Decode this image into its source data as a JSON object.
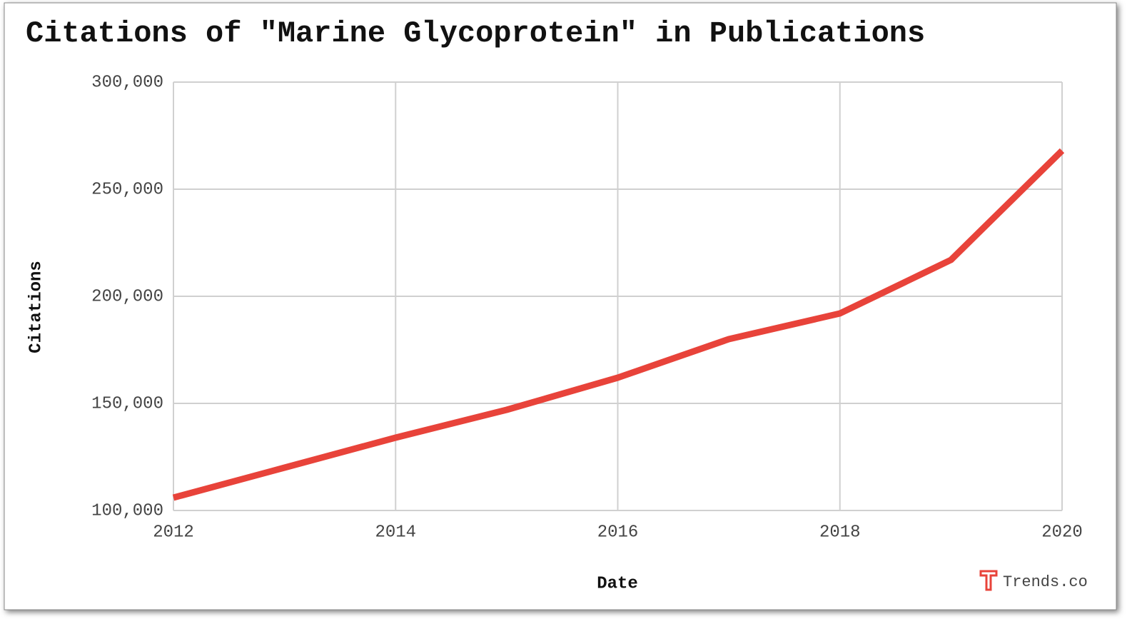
{
  "chart_data": {
    "type": "line",
    "title": "Citations of \"Marine Glycoprotein\" in Publications",
    "x_label": "Date",
    "y_label": "Citations",
    "watermark": "Trends.co",
    "x": [
      2012,
      2013,
      2014,
      2015,
      2016,
      2017,
      2018,
      2019,
      2020
    ],
    "series": [
      {
        "name": "Citations",
        "color": "#e8433a",
        "values": [
          106000,
          120000,
          134000,
          147000,
          162000,
          180000,
          192000,
          217000,
          268000
        ]
      }
    ],
    "xlim": [
      2012,
      2020
    ],
    "xticks": [
      2012,
      2014,
      2016,
      2018,
      2020
    ],
    "ylim": [
      100000,
      300000
    ],
    "yticks": [
      {
        "value": 100000,
        "label": "100,000"
      },
      {
        "value": 150000,
        "label": "150,000"
      },
      {
        "value": 200000,
        "label": "200,000"
      },
      {
        "value": 250000,
        "label": "250,000"
      },
      {
        "value": 300000,
        "label": "300,000"
      }
    ],
    "grid": true
  }
}
